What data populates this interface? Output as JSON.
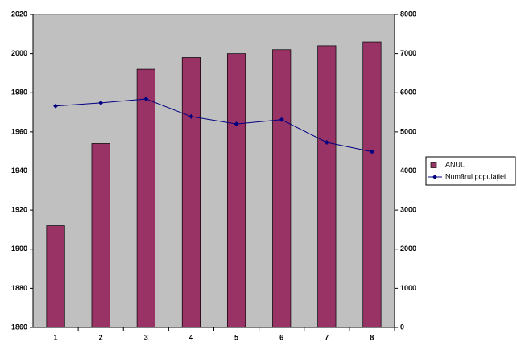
{
  "chart_data": {
    "type": "bar-line",
    "categories": [
      "1",
      "2",
      "3",
      "4",
      "5",
      "6",
      "7",
      "8"
    ],
    "series": [
      {
        "name": "ANUL",
        "type": "bar",
        "color": "#993366",
        "values": [
          1912,
          1954,
          1992,
          1998,
          2000,
          2002,
          2004,
          2006
        ]
      },
      {
        "name": "Numărul populaţiei",
        "type": "line",
        "axis": "y2",
        "color": "#000080",
        "values": [
          5660,
          5740,
          5840,
          5390,
          5200,
          5310,
          4730,
          4490
        ]
      }
    ],
    "ylim": [
      1860,
      2020
    ],
    "yticks": [
      1860,
      1880,
      1900,
      1920,
      1940,
      1960,
      1980,
      2000,
      2020
    ],
    "y2lim": [
      0,
      8000
    ],
    "y2ticks": [
      0,
      1000,
      2000,
      3000,
      4000,
      5000,
      6000,
      7000,
      8000
    ],
    "legend": "right",
    "background": "#c0c0c0"
  }
}
